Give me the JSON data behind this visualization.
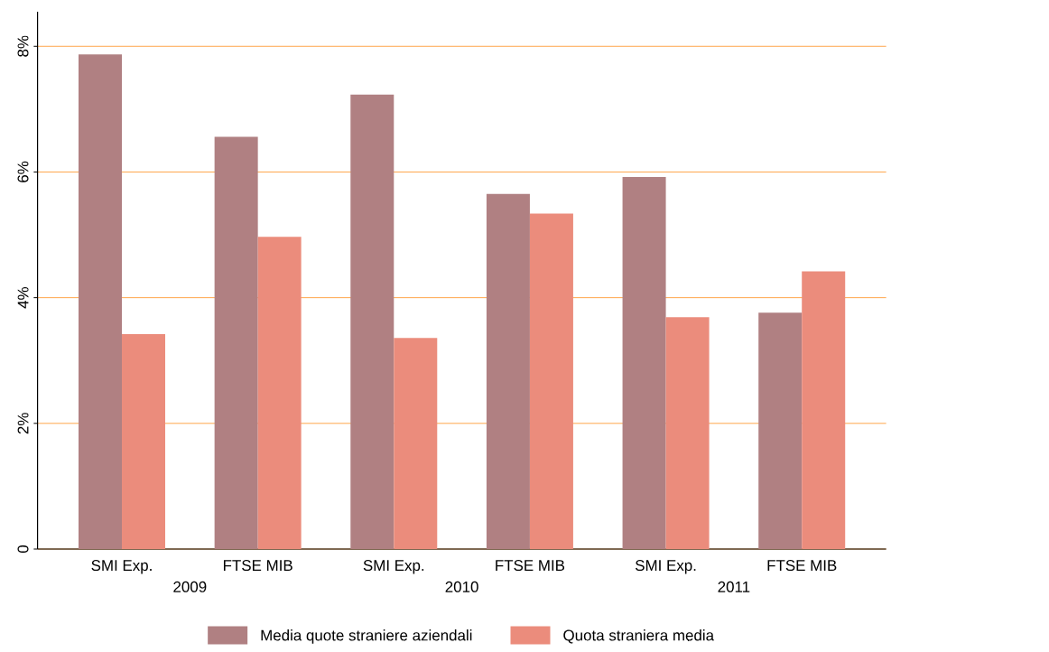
{
  "chart_data": {
    "type": "bar",
    "categories": [
      "SMI Exp.",
      "FTSE MIB",
      "SMI Exp.",
      "FTSE MIB",
      "SMI Exp.",
      "FTSE MIB"
    ],
    "series": [
      {
        "name": "Media quote straniere aziendali",
        "color": "#b08082",
        "values": [
          7.87,
          6.56,
          7.23,
          5.65,
          5.92,
          3.76
        ]
      },
      {
        "name": "Quota straniera media",
        "color": "#eb8c7c",
        "values": [
          3.42,
          4.97,
          3.36,
          5.34,
          3.69,
          4.42
        ]
      }
    ],
    "annotations": [
      "2009",
      "2010",
      "2011"
    ],
    "ylim": [
      0,
      8.55
    ],
    "yticks": [
      0,
      {
        "value": 2,
        "label": "2%"
      },
      {
        "value": 4,
        "label": "4%"
      },
      {
        "value": 6,
        "label": "6%"
      },
      {
        "value": 8,
        "label": "8%"
      }
    ],
    "grid": "y",
    "legend": "bottom"
  }
}
